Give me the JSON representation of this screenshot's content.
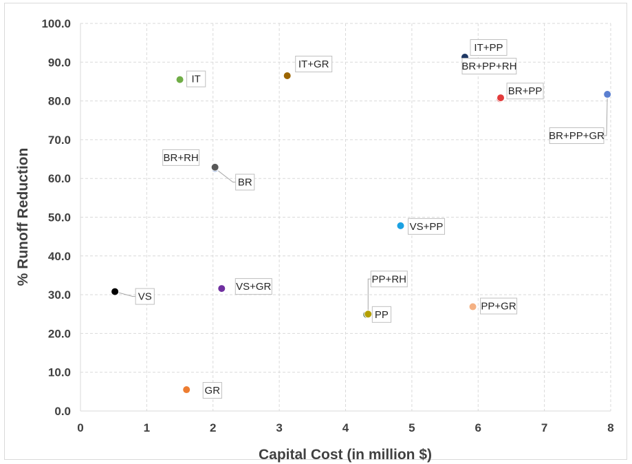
{
  "chart_data": {
    "type": "scatter",
    "xlabel": "Capital Cost (in million $)",
    "ylabel": "% Runoff Reduction",
    "xlim": [
      0,
      8
    ],
    "ylim": [
      0,
      100
    ],
    "x_ticks": [
      "0",
      "1",
      "2",
      "3",
      "4",
      "5",
      "6",
      "7",
      "8"
    ],
    "y_ticks": [
      "0.0",
      "10.0",
      "20.0",
      "30.0",
      "40.0",
      "50.0",
      "60.0",
      "70.0",
      "80.0",
      "90.0",
      "100.0"
    ],
    "grid": true,
    "legend": "none",
    "points": [
      {
        "label": "VS",
        "x": 0.52,
        "y": 30.8,
        "color": "#000000"
      },
      {
        "label": "GR",
        "x": 1.6,
        "y": 5.5,
        "color": "#ed7d31"
      },
      {
        "label": "IT",
        "x": 1.5,
        "y": 85.5,
        "color": "#70ad47"
      },
      {
        "label": "BR",
        "x": 2.03,
        "y": 62.6,
        "color": "#4472c4"
      },
      {
        "label": "BR+RH",
        "x": 2.03,
        "y": 62.9,
        "color": "#595959"
      },
      {
        "label": "VS+GR",
        "x": 2.13,
        "y": 31.6,
        "color": "#7030a0"
      },
      {
        "label": "IT+GR",
        "x": 3.12,
        "y": 86.5,
        "color": "#9c6500"
      },
      {
        "label": "PP",
        "x": 4.32,
        "y": 24.9,
        "color": "#375623"
      },
      {
        "label": "PP+RH",
        "x": 4.34,
        "y": 25.0,
        "color": "#b4a000"
      },
      {
        "label": "VS+PP",
        "x": 4.83,
        "y": 47.8,
        "color": "#1ba1e2"
      },
      {
        "label": "IT+PP",
        "x": 5.8,
        "y": 91.3,
        "color": "#1f3864"
      },
      {
        "label": "PP+GR",
        "x": 5.92,
        "y": 26.9,
        "color": "#f4b183"
      },
      {
        "label": "BR+PP",
        "x": 6.33,
        "y": 80.6,
        "color": "#c00000"
      },
      {
        "label": "BR+PP+RH",
        "x": 6.34,
        "y": 80.8,
        "color": "#e33b3b"
      },
      {
        "label": "BR+PP+GR",
        "x": 7.95,
        "y": 81.7,
        "color": "#5b7fd0"
      }
    ]
  }
}
